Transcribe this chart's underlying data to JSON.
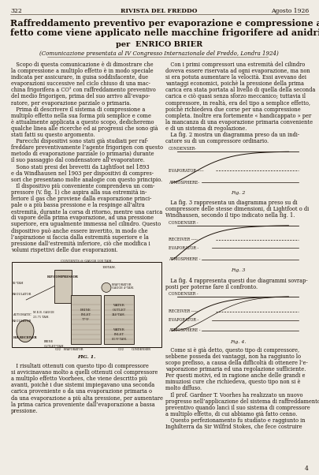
{
  "page_width": 4.05,
  "page_height": 6.02,
  "bg_color": "#f0ece4",
  "header_page": "322",
  "header_title": "RIVISTA DEL FREDDO",
  "header_date": "Agosto 1926",
  "article_title_line1": "Raffreddamento preventivo per evaporazione e compressione a multiplo ef-",
  "article_title_line2": "fetto come viene applicato nelle macchine frigorifere ad anidride carbonica",
  "author_line": "per  ENRICO BRIER",
  "subtitle": "(Comunicazione presentata al IV Congresso Internazionale del Freddo, Londra 1924)",
  "col1_text": [
    "   Scopo di questa comunicazione è di dimostrare che",
    "la compressione a multiplo effetto è in modo speciale",
    "indicata per assicurare, in guisa soddisfacente, due",
    "evaporazioni successive nel ciclo chiuso di una mac-",
    "china frigorifera a CO² con raffreddamento preventivo",
    "del medio frigorigen, prima del suo arrivo all’evapo-",
    "ratore, per evaporazione parziale o primaria.",
    "   Prima di descrivere il sistema di compressione a",
    "multiplo effetto nella sua forma più semplice e come",
    "è attualmente applicata a questo scopo, dedicheremo",
    "qualche linea alle ricerche ed ai progressi che sono già",
    "stati fatti su questo argomento.",
    "   Parecchi dispositivi sono stati già studiati per raf-",
    "freddare preventivamente l’agente frigorigen con questo",
    "metodo di evaporazione parziale (o primaria) durante",
    "il suo passaggio dal condensatore all’evaporatore.",
    "   Sono stati presi dei brevetti da Lightfoot nel 1893",
    "e da Windhausen nel 1903 per dispositivi di compres-",
    "sori che presentano molte analogie con questo principio.",
    "   Il dispositivo più conveniente comprendeva un com-",
    "pressore (V. fig. 1) che aspira alla sua estremità in-",
    "feriore il gas che proviene dalla evaporazione princi-",
    "pale o a più bassa pressione e la respinge all’altra",
    "estremità, durante la corsa di ritorno, mentre una carica"
  ],
  "col2_text_top": [
    "   Con i primi compressori una estremità del cilindro",
    "doveva essere riservata ad ogni evaporazione, ma non",
    "si era potuta aumentare la velocità. Essi avevano dei",
    "vantaggi economici, poichè la pressione della prima",
    "carica era stata portata al livello di quella della seconda",
    "carica e ciò quasi senza sforzo meccanico; tuttavia il",
    "compressore, in realtà, era del tipo a semplice effetto,",
    "poichè richiedeva due corse per una compressione",
    "completa. Inoltre era fortemente « handicappato » per",
    "la mancanza di una evaporazione primaria conveniente",
    "e di un sistema di regolazione.",
    "   La fig. 2 mostra un diagramma preso da un indi-",
    "catore su di un compressore ordinario."
  ],
  "col1_text_bottom": [
    "di vapore della prima evaporazione, ad una pressione",
    "superiore, era ugualmente immessa nel cilindro. Questo",
    "dispositivo può anche essere invertito, in modo che",
    "l’aspirazione si faccia dalla estremità superiore e la",
    "pressione dall’estremità inferiore, ciò che modifica i",
    "volumi rispettivi delle due evaporazioni."
  ],
  "fig3_text": [
    "   La fig. 3 rappresenta un diagramma preso su di",
    "compressore delle stesse dimensioni, di Lightfoot o di",
    "Windhausen, secondo il tipo indicato nella fig. 1."
  ],
  "fig4_text": [
    "   La fig. 4 rappresenta questi due diagrammi sovrap-",
    "posti per poterne fare il confronto."
  ],
  "col2_bottom_text": [
    "   Come si è già detto, questo tipo di compressore,",
    "sebbene posseda dei vantaggi, non ha raggiunto lo",
    "scopo prefisso, a causa della difficoltà di ottenere l’e-",
    "vaporazione primaria ed una regolazione sufficiente.",
    "Per questi motivi, ed in ragione anche delle grandi e",
    "minuziosi cure che richiedeva, questo tipo non si è",
    "molto diffuso.",
    "   Il prof. Gardner T. Voorhes ha realizzato un nuovo",
    "progresso nell’applicazione del sistema di raffreddamento",
    "preventivo quando lancì il suo sistema di compressore",
    "a multiplo effetto, di cui abbiamo già fatto cenno.",
    "   Questo perfezionamento fu studiato e raggiunto in",
    "Inghilterra da Sir Wilfrid Stokes, che fece costruire"
  ],
  "col1_bottom_text": [
    "   I risultati ottenuti con questo tipo di compressore",
    "si avvicinavano molto a quelli ottenuti col compressore",
    "a multiplo effetto Voorhees, che viene descritto più",
    "avanti, poichè i due sistemi impiegavano una seconda",
    "carica proveniente o da una evaporazione primaria o",
    "da una evaporazione a più alta pressione, per aumentare",
    "la prima carica proveniente dall’evaporazione a bassa",
    "pressione."
  ],
  "text_color": "#1a1008",
  "line_color": "#5a4a3a"
}
